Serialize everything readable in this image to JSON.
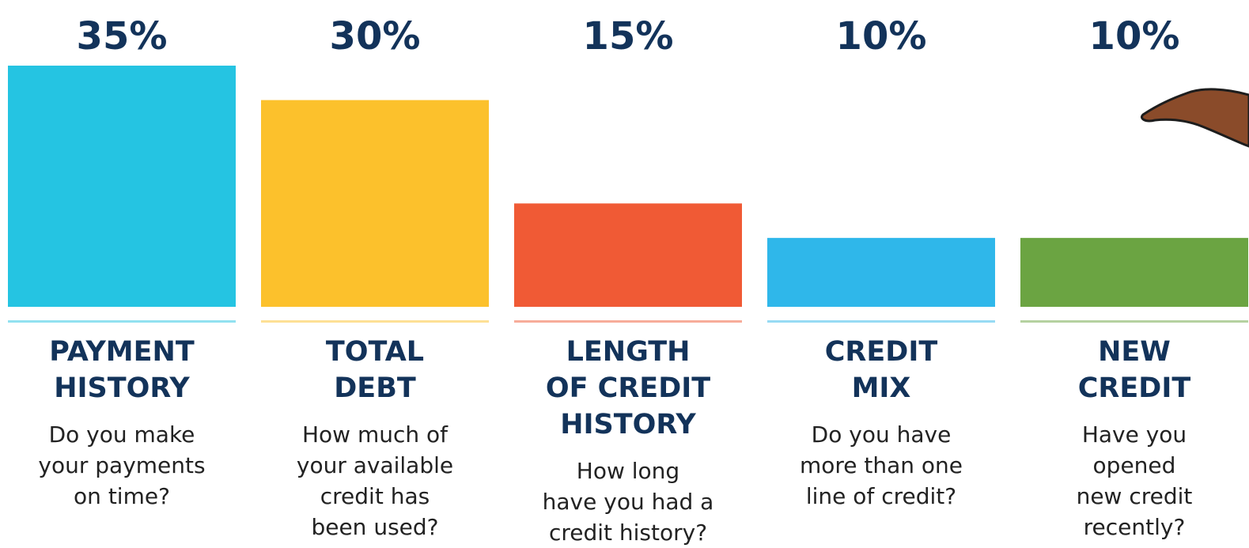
{
  "chart_data": {
    "type": "bar",
    "categories": [
      "PAYMENT\nHISTORY",
      "TOTAL\nDEBT",
      "LENGTH\nOF CREDIT\nHISTORY",
      "CREDIT\nMIX",
      "NEW\nCREDIT"
    ],
    "descriptions": [
      "Do you make\nyour payments\non time?",
      "How much of\nyour available\ncredit has\nbeen used?",
      "How long\nhave you had a\ncredit history?",
      "Do you have\nmore than one\nline of credit?",
      "Have you\nopened\nnew credit\nrecently?"
    ],
    "values": [
      35,
      30,
      15,
      10,
      10
    ],
    "value_labels": [
      "35%",
      "30%",
      "15%",
      "10%",
      "10%"
    ],
    "colors": [
      "#25c4e2",
      "#fcc12c",
      "#f05a35",
      "#2fb7ea",
      "#6ba442"
    ]
  }
}
